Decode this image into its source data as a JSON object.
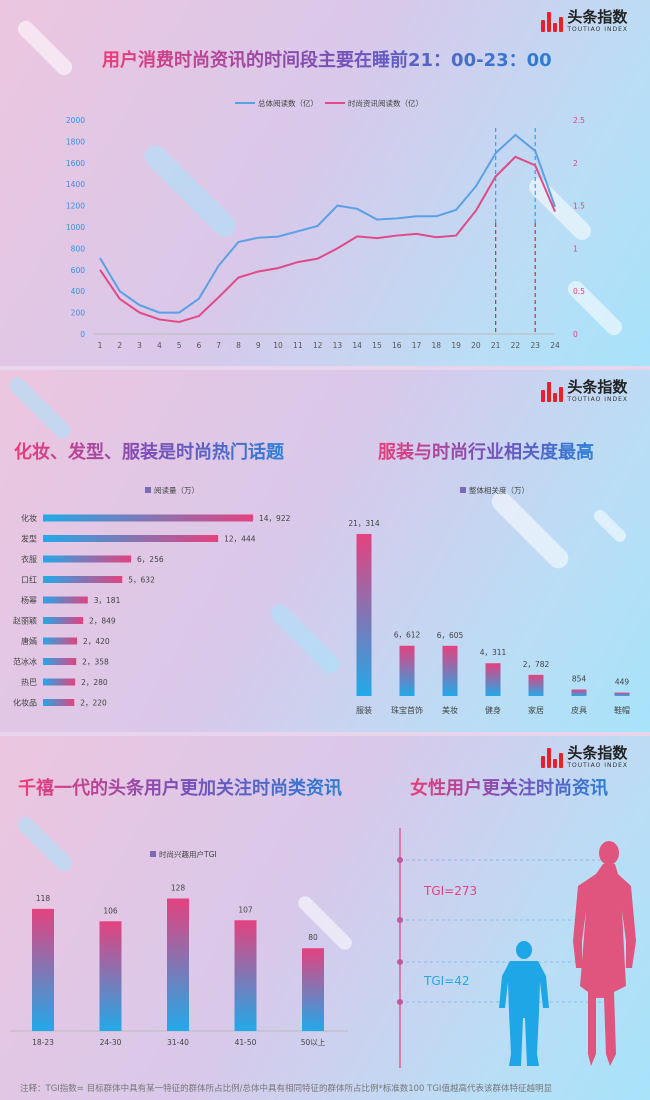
{
  "brand": {
    "cn": "头条指数",
    "en": "TOUTIAO INDEX"
  },
  "panel1": {
    "headline": "用户消费时尚资讯的时间段主要在睡前21：00-23：00"
  },
  "panel2": {
    "headline_left": "化妆、发型、服装是时尚热门话题",
    "headline_right": "服装与时尚行业相关度最高"
  },
  "panel3": {
    "headline_left": "千禧一代的头条用户更加关注时尚类资讯",
    "headline_right": "女性用户更关注时尚资讯",
    "tgi_female": "TGI=273",
    "tgi_male": "TGI=42"
  },
  "footnote": "注释：TGI指数= 目标群体中具有某一特征的群体所占比例/总体中具有相同特征的群体所占比例*标准数100    TGI值越高代表该群体特征越明显",
  "colors": {
    "pink": "#e3427f",
    "blue": "#22a9e8",
    "line_total": "#5aa0e6",
    "line_fashion": "#e04a86"
  },
  "chart_data": [
    {
      "type": "line",
      "x": [
        1,
        2,
        3,
        4,
        5,
        6,
        7,
        8,
        9,
        10,
        11,
        12,
        13,
        14,
        15,
        16,
        17,
        18,
        19,
        20,
        21,
        22,
        23,
        24
      ],
      "x_ticks": [
        "1",
        "2",
        "3",
        "4",
        "5",
        "6",
        "7",
        "8",
        "9",
        "10",
        "11",
        "12",
        "13",
        "14",
        "15",
        "16",
        "17",
        "18",
        "19",
        "20",
        "21",
        "22",
        "23",
        "24"
      ],
      "series": [
        {
          "name": "总体阅读数（亿）",
          "axis": "left",
          "values": [
            710,
            400,
            270,
            200,
            200,
            330,
            640,
            860,
            900,
            910,
            960,
            1010,
            1200,
            1170,
            1070,
            1080,
            1100,
            1100,
            1160,
            1380,
            1690,
            1860,
            1710,
            1190
          ]
        },
        {
          "name": "时尚资讯阅读数（亿）",
          "axis": "right",
          "values": [
            0.75,
            0.41,
            0.25,
            0.17,
            0.14,
            0.21,
            0.43,
            0.66,
            0.73,
            0.77,
            0.84,
            0.88,
            1.0,
            1.14,
            1.12,
            1.15,
            1.17,
            1.13,
            1.15,
            1.44,
            1.84,
            2.07,
            1.97,
            1.43
          ]
        }
      ],
      "y_left": {
        "ticks": [
          0,
          200,
          400,
          600,
          800,
          1000,
          1200,
          1400,
          1600,
          1800,
          2000
        ],
        "lim": [
          0,
          2000
        ]
      },
      "y_right": {
        "ticks": [
          0,
          0.5,
          1,
          1.5,
          2,
          2.5
        ],
        "lim": [
          0,
          2.5
        ]
      },
      "annotations": [
        {
          "type": "vline",
          "x": 21
        },
        {
          "type": "vline",
          "x": 23
        }
      ]
    },
    {
      "type": "bar",
      "orientation": "horizontal",
      "legend": "阅读量（万）",
      "categories": [
        "化妆",
        "发型",
        "衣服",
        "口红",
        "杨幂",
        "赵丽颖",
        "唐嫣",
        "范冰冰",
        "热巴",
        "化妆品"
      ],
      "values": [
        14922,
        12444,
        6256,
        5632,
        3181,
        2849,
        2420,
        2358,
        2280,
        2220
      ],
      "labels": [
        "14，922",
        "12，444",
        "6，256",
        "5，632",
        "3，181",
        "2，849",
        "2，420",
        "2，358",
        "2，280",
        "2，220"
      ]
    },
    {
      "type": "bar",
      "legend": "整体相关度（万）",
      "categories": [
        "服装",
        "珠宝首饰",
        "美妆",
        "健身",
        "家居",
        "皮具",
        "鞋帽"
      ],
      "values": [
        21314,
        6612,
        6605,
        4311,
        2782,
        854,
        449
      ],
      "labels": [
        "21，314",
        "6，612",
        "6，605",
        "4，311",
        "2，782",
        "854",
        "449"
      ]
    },
    {
      "type": "bar",
      "legend": "时尚兴趣用户TGI",
      "categories": [
        "18-23",
        "24-30",
        "31-40",
        "41-50",
        "50以上"
      ],
      "values": [
        118,
        106,
        128,
        107,
        80
      ],
      "labels": [
        "118",
        "106",
        "128",
        "107",
        "80"
      ]
    }
  ]
}
